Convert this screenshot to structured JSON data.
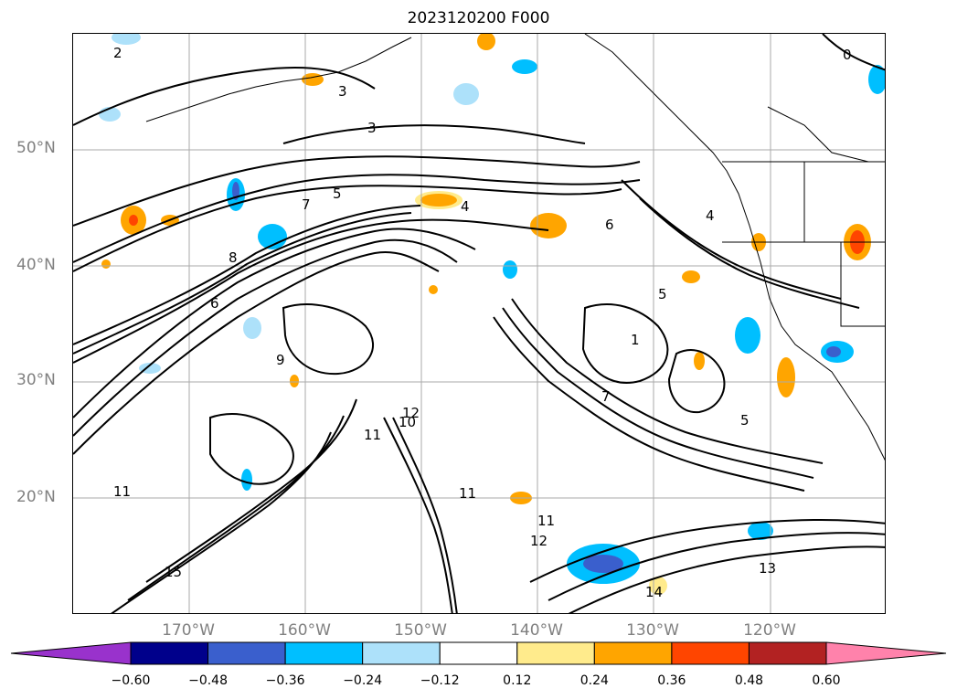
{
  "title": "2023120200 F000",
  "lat_labels": [
    "50°N",
    "40°N",
    "30°N",
    "20°N"
  ],
  "lon_labels": [
    "170°W",
    "160°W",
    "150°W",
    "140°W",
    "130°W",
    "120°W"
  ],
  "colorbar": {
    "labels": [
      "−0.60",
      "−0.48",
      "−0.36",
      "−0.24",
      "−0.12",
      "0.12",
      "0.24",
      "0.36",
      "0.48",
      "0.60"
    ],
    "colors": [
      "#9932CC",
      "#00008B",
      "#3A5FCD",
      "#00BFFF",
      "#ADE1FA",
      "#FFFFFF",
      "#FFEB8C",
      "#FFA500",
      "#FF4500",
      "#B22222",
      "#FF82AB"
    ]
  },
  "contour_labels": [
    "2",
    "3",
    "4",
    "5",
    "6",
    "7",
    "8",
    "9",
    "10",
    "11",
    "12",
    "13",
    "14",
    "15",
    "1",
    "0"
  ],
  "map": {
    "lon_range": [
      -177,
      -107
    ],
    "lat_range": [
      10,
      60
    ],
    "gridlines": true,
    "features": [
      "coastlines",
      "state borders",
      "contours",
      "shaded field"
    ]
  }
}
